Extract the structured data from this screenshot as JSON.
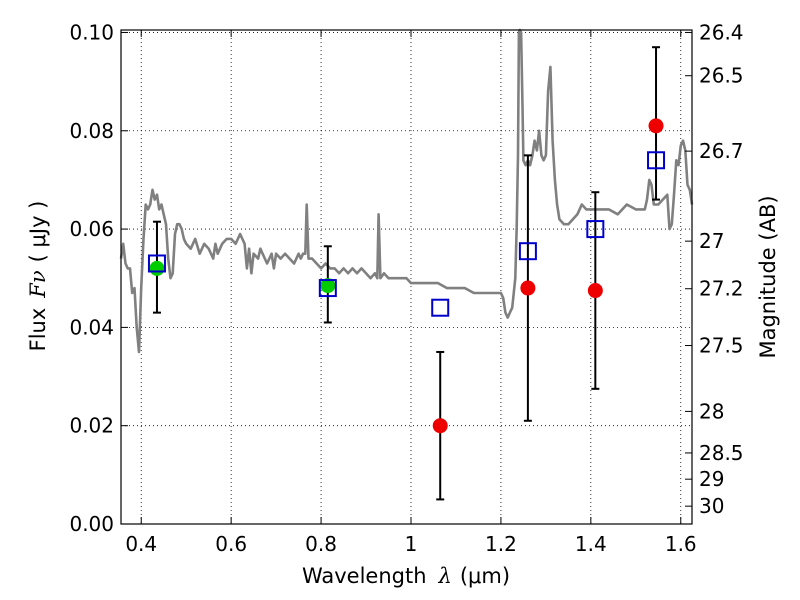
{
  "chart_data": {
    "type": "scatter",
    "xlabel": {
      "prefix": "Wavelength",
      "symbol": "λ",
      "unit": "(μm)"
    },
    "ylabel": {
      "prefix": "Flux",
      "symbol": "Fν",
      "unit": "( μJy )"
    },
    "ylabel_right": "Magnitude (AB)",
    "xlim": [
      0.355,
      1.625
    ],
    "ylim": [
      0.0,
      0.1005
    ],
    "grid": true,
    "x_ticks": [
      {
        "value": 0.4,
        "label": "0.4"
      },
      {
        "value": 0.6,
        "label": "0.6"
      },
      {
        "value": 0.8,
        "label": "0.8"
      },
      {
        "value": 1.0,
        "label": "1"
      },
      {
        "value": 1.2,
        "label": "1.2"
      },
      {
        "value": 1.4,
        "label": "1.4"
      },
      {
        "value": 1.6,
        "label": "1.6"
      }
    ],
    "y_ticks": [
      {
        "value": 0.0,
        "label": "0.00"
      },
      {
        "value": 0.02,
        "label": "0.02"
      },
      {
        "value": 0.04,
        "label": "0.04"
      },
      {
        "value": 0.06,
        "label": "0.06"
      },
      {
        "value": 0.08,
        "label": "0.08"
      },
      {
        "value": 0.1,
        "label": "0.10"
      }
    ],
    "right_ticks": [
      {
        "mag": 26.4,
        "label": "26.4"
      },
      {
        "mag": 26.5,
        "label": "26.5"
      },
      {
        "mag": 26.7,
        "label": "26.7"
      },
      {
        "mag": 27.0,
        "label": "27"
      },
      {
        "mag": 27.2,
        "label": "27.2"
      },
      {
        "mag": 27.5,
        "label": "27.5"
      },
      {
        "mag": 28.0,
        "label": "28"
      },
      {
        "mag": 28.5,
        "label": "28.5"
      },
      {
        "mag": 29.0,
        "label": "29"
      },
      {
        "mag": 30.0,
        "label": "30"
      }
    ],
    "model_spectrum": {
      "color": "#808080",
      "points": [
        [
          0.355,
          0.054
        ],
        [
          0.36,
          0.057
        ],
        [
          0.365,
          0.053
        ],
        [
          0.37,
          0.052
        ],
        [
          0.375,
          0.052
        ],
        [
          0.38,
          0.047
        ],
        [
          0.385,
          0.048
        ],
        [
          0.39,
          0.04
        ],
        [
          0.395,
          0.035
        ],
        [
          0.4,
          0.048
        ],
        [
          0.405,
          0.058
        ],
        [
          0.41,
          0.065
        ],
        [
          0.415,
          0.064
        ],
        [
          0.42,
          0.065
        ],
        [
          0.425,
          0.068
        ],
        [
          0.43,
          0.066
        ],
        [
          0.435,
          0.067
        ],
        [
          0.44,
          0.064
        ],
        [
          0.445,
          0.065
        ],
        [
          0.45,
          0.063
        ],
        [
          0.455,
          0.061
        ],
        [
          0.46,
          0.054
        ],
        [
          0.465,
          0.05
        ],
        [
          0.47,
          0.051
        ],
        [
          0.475,
          0.059
        ],
        [
          0.48,
          0.061
        ],
        [
          0.485,
          0.061
        ],
        [
          0.49,
          0.06
        ],
        [
          0.495,
          0.058
        ],
        [
          0.5,
          0.057
        ],
        [
          0.51,
          0.056
        ],
        [
          0.52,
          0.058
        ],
        [
          0.53,
          0.055
        ],
        [
          0.54,
          0.057
        ],
        [
          0.55,
          0.056
        ],
        [
          0.56,
          0.054
        ],
        [
          0.565,
          0.057
        ],
        [
          0.57,
          0.055
        ],
        [
          0.58,
          0.057
        ],
        [
          0.59,
          0.058
        ],
        [
          0.6,
          0.058
        ],
        [
          0.61,
          0.057
        ],
        [
          0.62,
          0.059
        ],
        [
          0.63,
          0.057
        ],
        [
          0.635,
          0.052
        ],
        [
          0.64,
          0.056
        ],
        [
          0.645,
          0.051
        ],
        [
          0.65,
          0.055
        ],
        [
          0.66,
          0.054
        ],
        [
          0.665,
          0.056
        ],
        [
          0.67,
          0.055
        ],
        [
          0.68,
          0.053
        ],
        [
          0.69,
          0.055
        ],
        [
          0.695,
          0.052
        ],
        [
          0.7,
          0.055
        ],
        [
          0.71,
          0.054
        ],
        [
          0.72,
          0.055
        ],
        [
          0.73,
          0.054
        ],
        [
          0.74,
          0.053
        ],
        [
          0.75,
          0.055
        ],
        [
          0.755,
          0.054
        ],
        [
          0.76,
          0.055
        ],
        [
          0.765,
          0.055
        ],
        [
          0.768,
          0.065
        ],
        [
          0.772,
          0.054
        ],
        [
          0.78,
          0.054
        ],
        [
          0.79,
          0.053
        ],
        [
          0.8,
          0.052
        ],
        [
          0.81,
          0.053
        ],
        [
          0.82,
          0.052
        ],
        [
          0.83,
          0.052
        ],
        [
          0.84,
          0.051
        ],
        [
          0.85,
          0.052
        ],
        [
          0.86,
          0.051
        ],
        [
          0.87,
          0.052
        ],
        [
          0.88,
          0.051
        ],
        [
          0.89,
          0.052
        ],
        [
          0.9,
          0.051
        ],
        [
          0.91,
          0.05
        ],
        [
          0.92,
          0.051
        ],
        [
          0.925,
          0.05
        ],
        [
          0.928,
          0.063
        ],
        [
          0.932,
          0.05
        ],
        [
          0.94,
          0.051
        ],
        [
          0.95,
          0.05
        ],
        [
          0.96,
          0.05
        ],
        [
          0.97,
          0.05
        ],
        [
          0.98,
          0.05
        ],
        [
          0.99,
          0.05
        ],
        [
          1.0,
          0.049
        ],
        [
          1.02,
          0.049
        ],
        [
          1.04,
          0.049
        ],
        [
          1.06,
          0.049
        ],
        [
          1.08,
          0.048
        ],
        [
          1.1,
          0.048
        ],
        [
          1.12,
          0.048
        ],
        [
          1.14,
          0.047
        ],
        [
          1.16,
          0.047
        ],
        [
          1.18,
          0.047
        ],
        [
          1.2,
          0.047
        ],
        [
          1.205,
          0.046
        ],
        [
          1.21,
          0.043
        ],
        [
          1.215,
          0.042
        ],
        [
          1.22,
          0.043
        ],
        [
          1.225,
          0.044
        ],
        [
          1.232,
          0.05
        ],
        [
          1.235,
          0.0605
        ],
        [
          1.238,
          0.075
        ],
        [
          1.24,
          0.1
        ],
        [
          1.242,
          0.1005
        ],
        [
          1.245,
          0.1
        ],
        [
          1.248,
          0.085
        ],
        [
          1.25,
          0.074
        ],
        [
          1.255,
          0.073
        ],
        [
          1.26,
          0.074
        ],
        [
          1.265,
          0.073
        ],
        [
          1.27,
          0.075
        ],
        [
          1.275,
          0.078
        ],
        [
          1.28,
          0.076
        ],
        [
          1.285,
          0.08
        ],
        [
          1.29,
          0.075
        ],
        [
          1.295,
          0.074
        ],
        [
          1.3,
          0.075
        ],
        [
          1.305,
          0.088
        ],
        [
          1.31,
          0.093
        ],
        [
          1.315,
          0.078
        ],
        [
          1.32,
          0.07
        ],
        [
          1.325,
          0.065
        ],
        [
          1.33,
          0.062
        ],
        [
          1.34,
          0.061
        ],
        [
          1.35,
          0.061
        ],
        [
          1.36,
          0.062
        ],
        [
          1.37,
          0.063
        ],
        [
          1.38,
          0.065
        ],
        [
          1.39,
          0.064
        ],
        [
          1.4,
          0.064
        ],
        [
          1.42,
          0.064
        ],
        [
          1.44,
          0.064
        ],
        [
          1.46,
          0.063
        ],
        [
          1.48,
          0.065
        ],
        [
          1.5,
          0.064
        ],
        [
          1.52,
          0.064
        ],
        [
          1.525,
          0.066
        ],
        [
          1.53,
          0.07
        ],
        [
          1.535,
          0.069
        ],
        [
          1.54,
          0.065
        ],
        [
          1.55,
          0.065
        ],
        [
          1.56,
          0.066
        ],
        [
          1.57,
          0.067
        ],
        [
          1.575,
          0.06
        ],
        [
          1.58,
          0.061
        ],
        [
          1.585,
          0.067
        ],
        [
          1.59,
          0.074
        ],
        [
          1.595,
          0.073
        ],
        [
          1.6,
          0.077
        ],
        [
          1.605,
          0.078
        ],
        [
          1.61,
          0.076
        ],
        [
          1.615,
          0.069
        ],
        [
          1.62,
          0.068
        ],
        [
          1.625,
          0.065
        ]
      ]
    },
    "model_points": {
      "color": "#0000cc",
      "points": [
        [
          0.435,
          0.053
        ],
        [
          0.815,
          0.048
        ],
        [
          1.065,
          0.044
        ],
        [
          1.26,
          0.0555
        ],
        [
          1.41,
          0.06
        ],
        [
          1.545,
          0.074
        ]
      ]
    },
    "observed_points": {
      "color": "#ee0000",
      "points": [
        {
          "x": 1.065,
          "y": 0.02,
          "err": [
            0.005,
            0.035
          ]
        },
        {
          "x": 1.26,
          "y": 0.048,
          "err": [
            0.021,
            0.075
          ]
        },
        {
          "x": 1.41,
          "y": 0.0475,
          "err": [
            0.0275,
            0.0675
          ]
        },
        {
          "x": 1.545,
          "y": 0.081,
          "err": [
            0.066,
            0.097
          ]
        }
      ]
    },
    "optical_points": {
      "color": "#00cc00",
      "points": [
        {
          "x": 0.435,
          "y": 0.052,
          "err": [
            0.043,
            0.0615
          ]
        },
        {
          "x": 0.815,
          "y": 0.0485,
          "err": [
            0.041,
            0.0565
          ]
        }
      ]
    }
  }
}
